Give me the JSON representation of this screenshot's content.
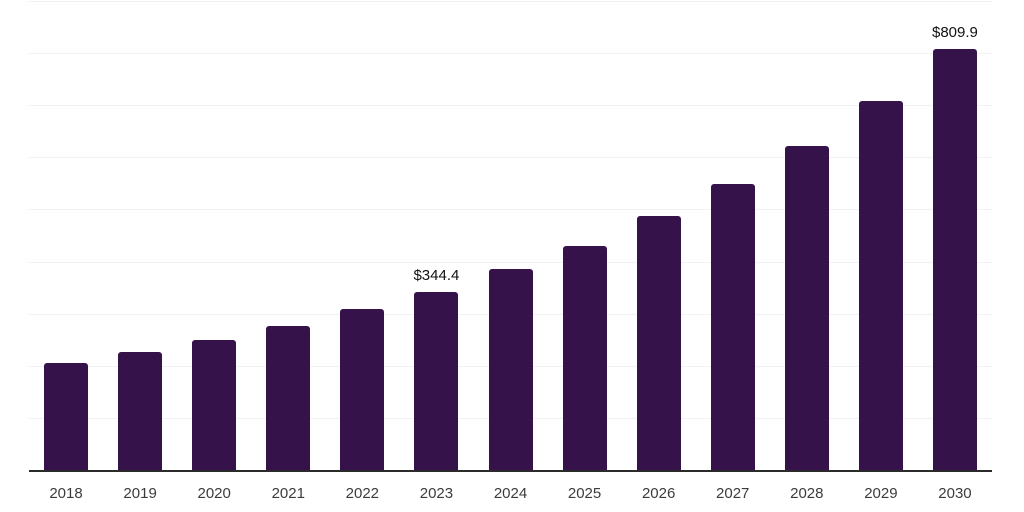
{
  "chart_data": {
    "type": "bar",
    "title": "",
    "xlabel": "",
    "ylabel": "",
    "categories": [
      "2018",
      "2019",
      "2020",
      "2021",
      "2022",
      "2023",
      "2024",
      "2025",
      "2026",
      "2027",
      "2028",
      "2029",
      "2030"
    ],
    "values": [
      207.0,
      228.0,
      250.8,
      277.9,
      310.5,
      344.4,
      387.0,
      431.0,
      488.5,
      551.7,
      624.5,
      710.6,
      809.9
    ],
    "value_prefix": "$",
    "data_label_texts": {
      "2023": "$344.4",
      "2030": "$809.9"
    },
    "data_labels_visible_for": [
      "2023",
      "2030"
    ],
    "ylim": [
      0,
      900
    ],
    "gridline_step": 100,
    "grid": "horizontal-only",
    "y_tick_labels_visible": false,
    "legend": "none",
    "colors": {
      "bar": "#351249",
      "axis_line": "#2b2b2b",
      "gridline": "#f2f2f2",
      "data_label": "#111111",
      "tick_label": "#3c3c3c",
      "background": "#ffffff"
    }
  }
}
